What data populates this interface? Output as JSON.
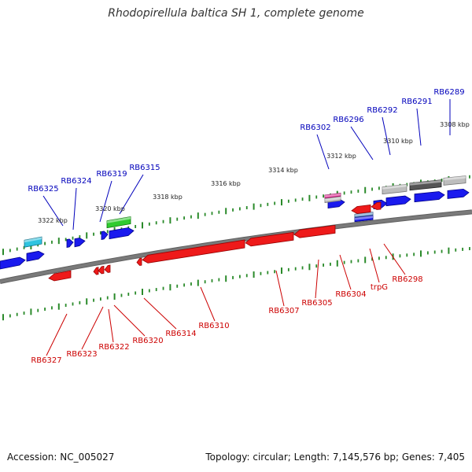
{
  "header": {
    "title": "Rhodopirellula baltica SH 1, complete genome"
  },
  "footer": {
    "accession": "Accession: NC_005027",
    "topology": "Topology: circular; Length: 7,145,576 bp; Genes: 7,405"
  },
  "colors": {
    "forward_label": "#0000bb",
    "reverse_label": "#cc0000",
    "tick": "#2a8a2a",
    "backbone": "#7a7a7a"
  },
  "scale_labels": [
    "3322 kbp",
    "3320 kbp",
    "3318 kbp",
    "3316 kbp",
    "3314 kbp",
    "3312 kbp",
    "3310 kbp",
    "3308 kbp"
  ],
  "forward_genes": [
    "RB6325",
    "RB6324",
    "RB6319",
    "RB6315",
    "RB6302",
    "RB6296",
    "RB6292",
    "RB6291",
    "RB6289"
  ],
  "reverse_genes": [
    "RB6327",
    "RB6323",
    "RB6322",
    "RB6320",
    "RB6314",
    "RB6310",
    "RB6307",
    "RB6305",
    "RB6304",
    "trpG",
    "RB6298"
  ]
}
